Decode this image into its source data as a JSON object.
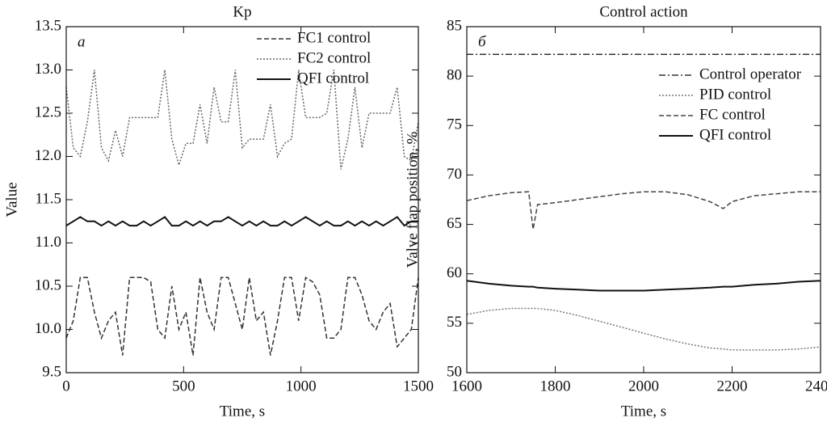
{
  "chart_data": [
    {
      "type": "line",
      "title": "Kp",
      "xlabel": "Time, s",
      "ylabel": "Value",
      "annotation": "а",
      "xlim": [
        0,
        1500
      ],
      "xticks": [
        0,
        500,
        1000,
        1500
      ],
      "ylim": [
        9.5,
        13.5
      ],
      "yticks": [
        9.5,
        {
          "value": 10,
          "label": "10.0"
        },
        10.5,
        {
          "value": 11,
          "label": "11.0"
        },
        11.5,
        {
          "value": 12,
          "label": "12.0"
        },
        12.5,
        {
          "value": 13,
          "label": "13.0"
        },
        13.5
      ],
      "legend": "upper right",
      "x": [
        0,
        30,
        60,
        90,
        120,
        150,
        180,
        210,
        240,
        270,
        300,
        330,
        360,
        390,
        420,
        450,
        480,
        510,
        540,
        570,
        600,
        630,
        660,
        690,
        720,
        750,
        780,
        810,
        840,
        870,
        900,
        930,
        960,
        990,
        1020,
        1050,
        1080,
        1110,
        1140,
        1170,
        1200,
        1230,
        1260,
        1290,
        1320,
        1350,
        1380,
        1410,
        1440,
        1470,
        1500
      ],
      "series": [
        {
          "name": "FC1 control",
          "color": "#333333",
          "dash": "dashed",
          "values": [
            9.9,
            10.1,
            10.6,
            10.6,
            10.2,
            9.9,
            10.1,
            10.2,
            9.7,
            10.6,
            10.6,
            10.6,
            10.55,
            10.0,
            9.9,
            10.5,
            10.0,
            10.2,
            9.7,
            10.6,
            10.2,
            10.0,
            10.6,
            10.6,
            10.3,
            10.0,
            10.6,
            10.1,
            10.2,
            9.7,
            10.1,
            10.6,
            10.6,
            10.1,
            10.6,
            10.55,
            10.4,
            9.9,
            9.9,
            10.0,
            10.6,
            10.6,
            10.4,
            10.1,
            10.0,
            10.2,
            10.3,
            9.8,
            9.9,
            10.0,
            10.6
          ]
        },
        {
          "name": "FC2 control",
          "color": "#666666",
          "dash": "dotted",
          "values": [
            12.8,
            12.1,
            12.0,
            12.4,
            13.0,
            12.1,
            11.95,
            12.3,
            12.0,
            12.45,
            12.45,
            12.45,
            12.45,
            12.45,
            13.0,
            12.2,
            11.9,
            12.15,
            12.15,
            12.6,
            12.15,
            12.8,
            12.4,
            12.4,
            13.0,
            12.1,
            12.2,
            12.2,
            12.2,
            12.6,
            12.0,
            12.15,
            12.2,
            13.0,
            12.45,
            12.45,
            12.45,
            12.5,
            13.0,
            11.85,
            12.2,
            12.8,
            12.1,
            12.5,
            12.5,
            12.5,
            12.5,
            12.8,
            12.0,
            11.95,
            12.4
          ]
        },
        {
          "name": "QFI control",
          "color": "#111111",
          "dash": "solid",
          "values": [
            11.2,
            11.25,
            11.3,
            11.25,
            11.25,
            11.2,
            11.25,
            11.2,
            11.25,
            11.2,
            11.2,
            11.25,
            11.2,
            11.25,
            11.3,
            11.2,
            11.2,
            11.25,
            11.2,
            11.25,
            11.2,
            11.25,
            11.25,
            11.3,
            11.25,
            11.2,
            11.25,
            11.2,
            11.25,
            11.2,
            11.2,
            11.25,
            11.2,
            11.25,
            11.3,
            11.25,
            11.2,
            11.25,
            11.2,
            11.2,
            11.25,
            11.2,
            11.25,
            11.2,
            11.25,
            11.2,
            11.25,
            11.3,
            11.2,
            11.25,
            11.25
          ]
        }
      ]
    },
    {
      "type": "line",
      "title": "Control action",
      "xlabel": "Time, s",
      "ylabel": "Valve flap position, %",
      "annotation": "б",
      "xlim": [
        1600,
        2400
      ],
      "xticks": [
        1600,
        1800,
        2000,
        2200,
        2400
      ],
      "ylim": [
        50,
        85
      ],
      "yticks": [
        50,
        55,
        60,
        65,
        70,
        75,
        80,
        85
      ],
      "legend": "center right",
      "x": [
        1600,
        1650,
        1700,
        1740,
        1750,
        1760,
        1800,
        1850,
        1900,
        1950,
        2000,
        2050,
        2100,
        2150,
        2180,
        2200,
        2250,
        2300,
        2350,
        2400
      ],
      "series": [
        {
          "name": "Control operator",
          "color": "#333333",
          "dash": "dashdot",
          "values": [
            82.2,
            82.2,
            82.2,
            82.2,
            82.2,
            82.2,
            82.2,
            82.2,
            82.2,
            82.2,
            82.2,
            82.2,
            82.2,
            82.2,
            82.2,
            82.2,
            82.2,
            82.2,
            82.2,
            82.2
          ]
        },
        {
          "name": "PID control",
          "color": "#777777",
          "dash": "dotted",
          "values": [
            55.9,
            56.3,
            56.5,
            56.5,
            56.5,
            56.5,
            56.3,
            55.8,
            55.2,
            54.6,
            54.0,
            53.4,
            52.9,
            52.5,
            52.4,
            52.3,
            52.3,
            52.3,
            52.4,
            52.6
          ]
        },
        {
          "name": "FC control",
          "color": "#444444",
          "dash": "dashed",
          "values": [
            67.4,
            67.9,
            68.2,
            68.3,
            64.5,
            67.0,
            67.2,
            67.5,
            67.8,
            68.1,
            68.3,
            68.3,
            68.0,
            67.3,
            66.6,
            67.3,
            67.9,
            68.1,
            68.3,
            68.3
          ]
        },
        {
          "name": "QFI control",
          "color": "#111111",
          "dash": "solid",
          "values": [
            59.3,
            59.0,
            58.8,
            58.7,
            58.7,
            58.6,
            58.5,
            58.4,
            58.3,
            58.3,
            58.3,
            58.4,
            58.5,
            58.6,
            58.7,
            58.7,
            58.9,
            59.0,
            59.2,
            59.3
          ]
        }
      ]
    }
  ]
}
